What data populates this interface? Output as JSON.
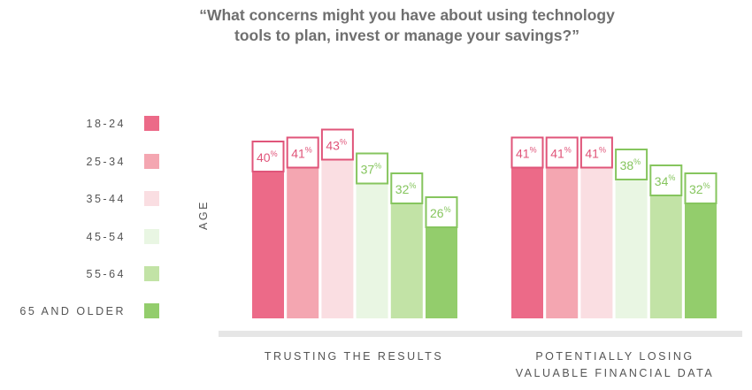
{
  "chart_data": {
    "type": "bar",
    "title": "“What concerns might you have about using technology\ntools to plan, invest or manage your savings?”",
    "ylabel": "AGE",
    "ylim": [
      0,
      50
    ],
    "categories": [
      "TRUSTING THE RESULTS",
      "POTENTIALLY LOSING\nVALUABLE FINANCIAL DATA"
    ],
    "series": [
      {
        "name": "18-24",
        "color": "#ec6a88",
        "values": [
          40,
          41
        ]
      },
      {
        "name": "25-34",
        "color": "#f4a6b1",
        "values": [
          41,
          41
        ]
      },
      {
        "name": "35-44",
        "color": "#fadee2",
        "values": [
          43,
          41
        ]
      },
      {
        "name": "45-54",
        "color": "#e9f6e3",
        "values": [
          37,
          38
        ]
      },
      {
        "name": "55-64",
        "color": "#c2e3a6",
        "values": [
          32,
          34
        ]
      },
      {
        "name": "65 AND OLDER",
        "color": "#93cd6c",
        "values": [
          26,
          32
        ]
      }
    ],
    "value_suffix": "%",
    "label_colors": {
      "pink": "#e0557a",
      "green": "#86c55e"
    },
    "baseline_color": "#e6e6e6"
  }
}
